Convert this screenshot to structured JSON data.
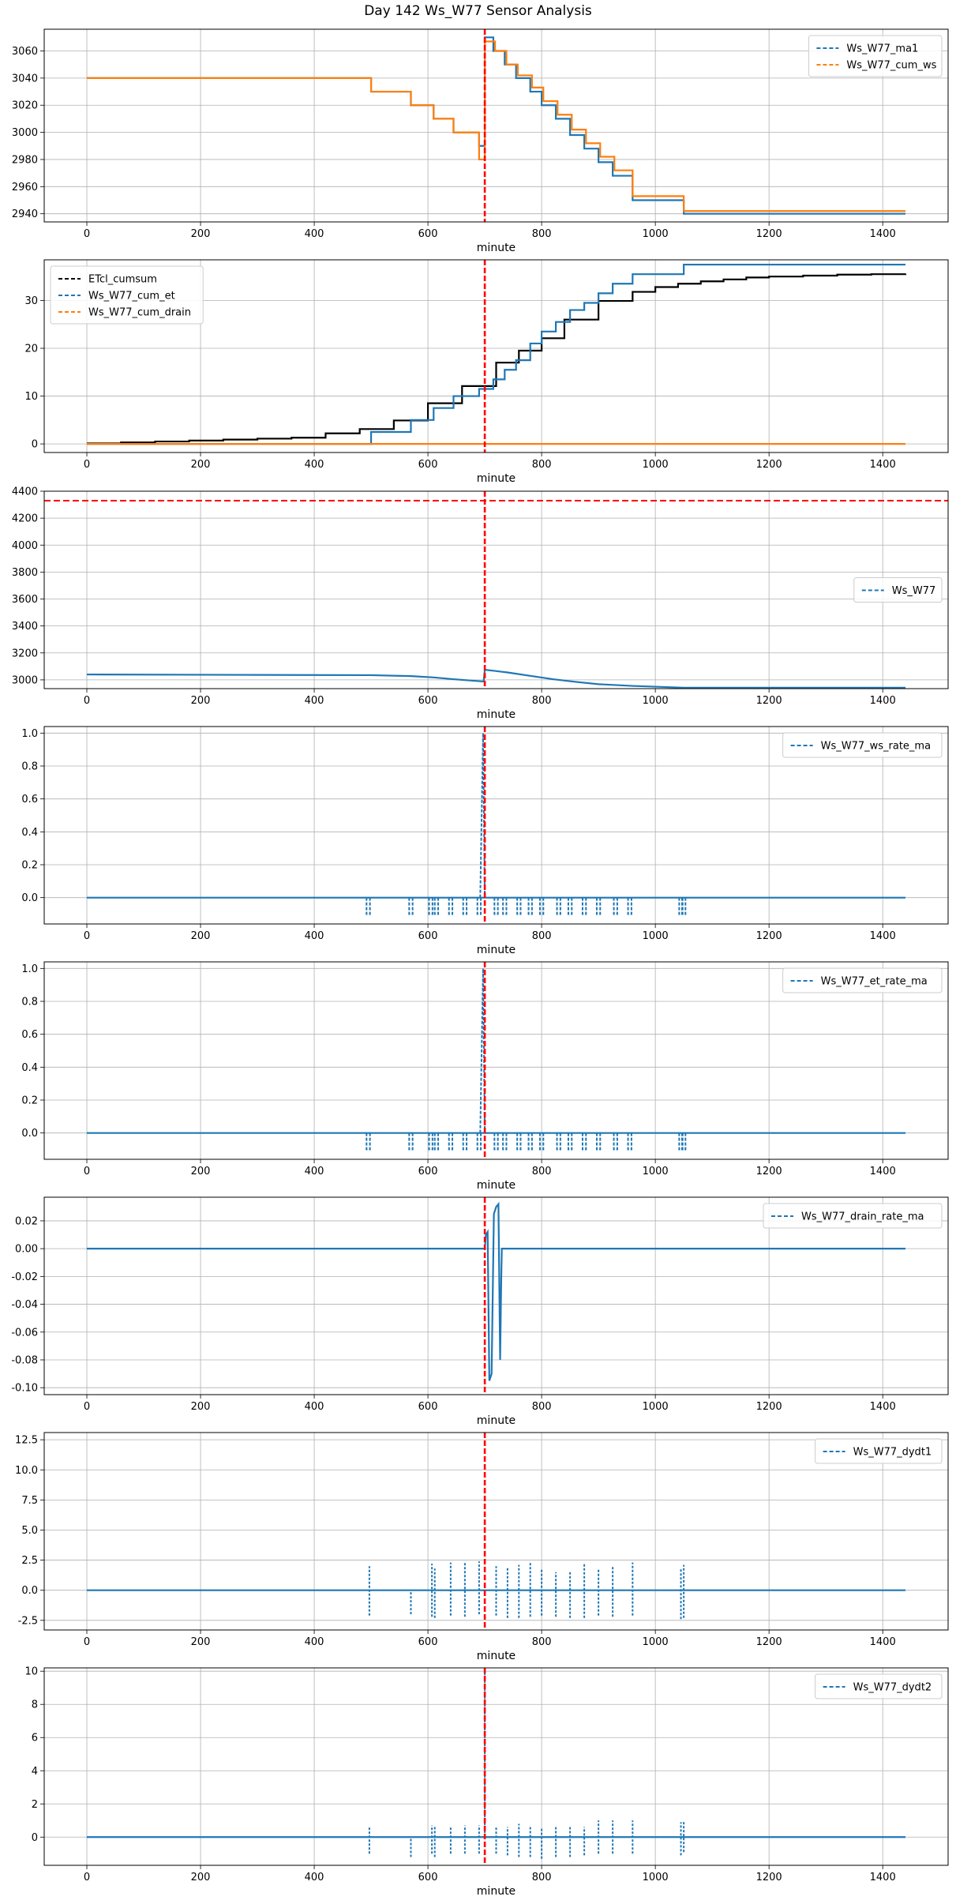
{
  "figure": {
    "title": "Day 142 Ws_W77 Sensor Analysis",
    "colors": {
      "blue": "#1f77b4",
      "orange": "#ff7f0e",
      "black": "#000000",
      "red": "#ff0000",
      "grid": "#b0b0b0"
    }
  },
  "chart_data": [
    {
      "type": "line",
      "xlabel": "minute",
      "xlim": [
        -75,
        1515
      ],
      "ylim": [
        2934,
        3076
      ],
      "xticks": [
        0,
        200,
        400,
        600,
        800,
        1000,
        1200,
        1400
      ],
      "yticks": [
        2940,
        2960,
        2980,
        3000,
        3020,
        3040,
        3060
      ],
      "vline_x": 700,
      "legend": "top-right",
      "series": [
        {
          "name": "Ws_W77_ma1",
          "color": "#1f77b4",
          "style": "step",
          "x": [
            0,
            500,
            570,
            610,
            645,
            690,
            700,
            715,
            735,
            755,
            780,
            800,
            825,
            850,
            875,
            900,
            925,
            960,
            1050,
            1440
          ],
          "y": [
            3040,
            3030,
            3020,
            3010,
            3000,
            2990,
            3070,
            3060,
            3050,
            3040,
            3030,
            3020,
            3010,
            2998,
            2988,
            2978,
            2968,
            2950,
            2940,
            2940
          ]
        },
        {
          "name": "Ws_W77_cum_ws",
          "color": "#ff7f0e",
          "style": "step",
          "x": [
            0,
            500,
            570,
            610,
            645,
            690,
            700,
            718,
            738,
            758,
            783,
            803,
            828,
            853,
            878,
            903,
            928,
            960,
            1050,
            1440
          ],
          "y": [
            3040,
            3030,
            3020,
            3010,
            3000,
            2980,
            3067,
            3060,
            3050,
            3042,
            3033,
            3023,
            3013,
            3002,
            2992,
            2982,
            2972,
            2953,
            2942,
            2942
          ]
        }
      ]
    },
    {
      "type": "line",
      "xlabel": "minute",
      "xlim": [
        -75,
        1515
      ],
      "ylim": [
        -1.8,
        38.5
      ],
      "xticks": [
        0,
        200,
        400,
        600,
        800,
        1000,
        1200,
        1400
      ],
      "yticks": [
        0,
        10,
        20,
        30
      ],
      "vline_x": 700,
      "legend": "top-left",
      "series": [
        {
          "name": "ETcl_cumsum",
          "color": "#000000",
          "style": "step",
          "x": [
            0,
            60,
            120,
            180,
            240,
            300,
            360,
            420,
            480,
            540,
            600,
            660,
            720,
            760,
            800,
            840,
            900,
            960,
            1000,
            1040,
            1080,
            1120,
            1160,
            1200,
            1260,
            1320,
            1380,
            1440
          ],
          "y": [
            0.1,
            0.3,
            0.5,
            0.7,
            0.9,
            1.1,
            1.3,
            2.2,
            3.1,
            4.9,
            8.5,
            12.1,
            17.0,
            19.5,
            22.1,
            26.0,
            29.9,
            31.8,
            32.8,
            33.5,
            34.0,
            34.4,
            34.8,
            35.0,
            35.2,
            35.4,
            35.5,
            35.6
          ]
        },
        {
          "name": "Ws_W77_cum_et",
          "color": "#1f77b4",
          "style": "step",
          "x": [
            0,
            500,
            570,
            610,
            645,
            690,
            715,
            735,
            755,
            780,
            800,
            825,
            850,
            875,
            900,
            925,
            960,
            1050,
            1440
          ],
          "y": [
            0,
            2.5,
            5,
            7.5,
            10,
            11.5,
            13.5,
            15.5,
            17.5,
            21,
            23.5,
            25.5,
            28,
            29.5,
            31.5,
            33.5,
            35.5,
            37.5,
            37.5
          ]
        },
        {
          "name": "Ws_W77_cum_drain",
          "color": "#ff7f0e",
          "style": "step",
          "x": [
            0,
            1440
          ],
          "y": [
            0,
            0
          ]
        }
      ]
    },
    {
      "type": "line",
      "xlabel": "minute",
      "xlim": [
        -75,
        1515
      ],
      "ylim": [
        2935,
        4400
      ],
      "xticks": [
        0,
        200,
        400,
        600,
        800,
        1000,
        1200,
        1400
      ],
      "yticks": [
        3000,
        3200,
        3400,
        3600,
        3800,
        4000,
        4200,
        4400
      ],
      "vline_x": 700,
      "hline_y": 4330,
      "legend": "center-right",
      "series": [
        {
          "name": "Ws_W77",
          "color": "#1f77b4",
          "style": "line",
          "x": [
            0,
            500,
            570,
            610,
            645,
            698,
            700,
            715,
            740,
            780,
            820,
            860,
            900,
            960,
            1050,
            1440
          ],
          "y": [
            3040,
            3035,
            3028,
            3018,
            3005,
            2988,
            3075,
            3068,
            3055,
            3030,
            3005,
            2985,
            2968,
            2955,
            2942,
            2942
          ]
        }
      ]
    },
    {
      "type": "line",
      "xlabel": "minute",
      "xlim": [
        -75,
        1515
      ],
      "ylim": [
        -0.16,
        1.04
      ],
      "xticks": [
        0,
        200,
        400,
        600,
        800,
        1000,
        1200,
        1400
      ],
      "yticks": [
        0.0,
        0.2,
        0.4,
        0.6,
        0.8,
        1.0
      ],
      "vline_x": 700,
      "legend": "top-right",
      "series": [
        {
          "name": "Ws_W77_ws_rate_ma",
          "color": "#1f77b4",
          "style": "rate",
          "peak": 1.0,
          "baseline": 0,
          "dip": -0.1,
          "pulse_x": [
            495,
            570,
            605,
            615,
            640,
            665,
            690,
            720,
            735,
            760,
            780,
            800,
            830,
            850,
            875,
            900,
            930,
            955,
            1045,
            1050
          ]
        }
      ]
    },
    {
      "type": "line",
      "xlabel": "minute",
      "xlim": [
        -75,
        1515
      ],
      "ylim": [
        -0.16,
        1.04
      ],
      "xticks": [
        0,
        200,
        400,
        600,
        800,
        1000,
        1200,
        1400
      ],
      "yticks": [
        0.0,
        0.2,
        0.4,
        0.6,
        0.8,
        1.0
      ],
      "vline_x": 700,
      "legend": "top-right",
      "series": [
        {
          "name": "Ws_W77_et_rate_ma",
          "color": "#1f77b4",
          "style": "rate",
          "peak": 1.0,
          "baseline": 0,
          "dip": -0.1,
          "pulse_x": [
            495,
            570,
            605,
            615,
            640,
            665,
            690,
            720,
            735,
            760,
            780,
            800,
            830,
            850,
            875,
            900,
            930,
            955,
            1045,
            1050
          ]
        }
      ]
    },
    {
      "type": "line",
      "xlabel": "minute",
      "xlim": [
        -75,
        1515
      ],
      "ylim": [
        -0.105,
        0.037
      ],
      "xticks": [
        0,
        200,
        400,
        600,
        800,
        1000,
        1200,
        1400
      ],
      "yticks": [
        -0.1,
        -0.08,
        -0.06,
        -0.04,
        -0.02,
        0.0,
        0.02
      ],
      "ytick_labels": [
        "-0.10",
        "-0.08",
        "-0.06",
        "-0.04",
        "-0.02",
        "0.00",
        "0.02"
      ],
      "vline_x": 700,
      "legend": "top-right",
      "series": [
        {
          "name": "Ws_W77_drain_rate_ma",
          "color": "#1f77b4",
          "style": "line",
          "x": [
            0,
            700,
            702,
            705,
            708,
            712,
            716,
            720,
            724,
            727,
            729,
            730,
            735,
            1440
          ],
          "y": [
            0,
            0,
            0.01,
            0.012,
            -0.095,
            -0.09,
            0.025,
            0.03,
            0.032,
            -0.08,
            -0.02,
            0,
            0,
            0
          ]
        }
      ]
    },
    {
      "type": "line",
      "xlabel": "minute",
      "xlim": [
        -75,
        1515
      ],
      "ylim": [
        -3.3,
        13.1
      ],
      "xticks": [
        0,
        200,
        400,
        600,
        800,
        1000,
        1200,
        1400
      ],
      "yticks": [
        -2.5,
        0.0,
        2.5,
        5.0,
        7.5,
        10.0,
        12.5
      ],
      "ytick_labels": [
        "-2.5",
        "0.0",
        "2.5",
        "5.0",
        "7.5",
        "10.0",
        "12.5"
      ],
      "vline_x": 700,
      "legend": "top-right",
      "series": [
        {
          "name": "Ws_W77_dydt1",
          "color": "#1f77b4",
          "style": "spikes",
          "baseline": 0,
          "spike_x": [
            497,
            570,
            607,
            612,
            640,
            665,
            690,
            720,
            740,
            760,
            780,
            800,
            825,
            850,
            875,
            900,
            925,
            960,
            1045,
            1050
          ],
          "spike_hi": [
            2.0,
            0.0,
            2.2,
            1.8,
            2.3,
            2.3,
            2.4,
            2.0,
            1.9,
            2.1,
            2.3,
            1.8,
            1.5,
            1.5,
            2.3,
            1.8,
            2.0,
            2.3,
            1.8,
            2.1
          ],
          "spike_lo": [
            -2.1,
            -2.0,
            -2.2,
            -2.3,
            -2.1,
            -2.2,
            -2.0,
            -2.1,
            -2.3,
            -2.3,
            -2.2,
            -2.1,
            -2.2,
            -2.3,
            -2.3,
            -2.1,
            -2.2,
            -2.1,
            -2.4,
            -2.3
          ]
        }
      ]
    },
    {
      "type": "line",
      "xlabel": "minute",
      "xlim": [
        -75,
        1515
      ],
      "ylim": [
        -1.7,
        10.2
      ],
      "xticks": [
        0,
        200,
        400,
        600,
        800,
        1000,
        1200,
        1400
      ],
      "yticks": [
        0,
        2,
        4,
        6,
        8,
        10
      ],
      "vline_x": 700,
      "legend": "top-right",
      "series": [
        {
          "name": "Ws_W77_dydt2",
          "color": "#1f77b4",
          "style": "spikes",
          "baseline": 0,
          "spike_x": [
            497,
            570,
            607,
            612,
            640,
            665,
            690,
            700,
            720,
            740,
            760,
            780,
            800,
            825,
            850,
            875,
            900,
            925,
            960,
            1045,
            1050
          ],
          "spike_hi": [
            0.6,
            0.0,
            0.7,
            0.7,
            0.6,
            0.7,
            0.7,
            10.0,
            0.6,
            0.6,
            0.8,
            0.6,
            0.5,
            0.6,
            0.6,
            0.6,
            1.0,
            1.0,
            1.0,
            0.9,
            1.0
          ],
          "spike_lo": [
            -1.0,
            -1.2,
            -1.0,
            -1.2,
            -1.0,
            -1.0,
            -1.0,
            0.0,
            -1.0,
            -1.1,
            -1.2,
            -1.2,
            -1.3,
            -1.2,
            -1.2,
            -1.1,
            -1.0,
            -1.0,
            -1.0,
            -1.1,
            -0.9
          ]
        }
      ]
    }
  ]
}
